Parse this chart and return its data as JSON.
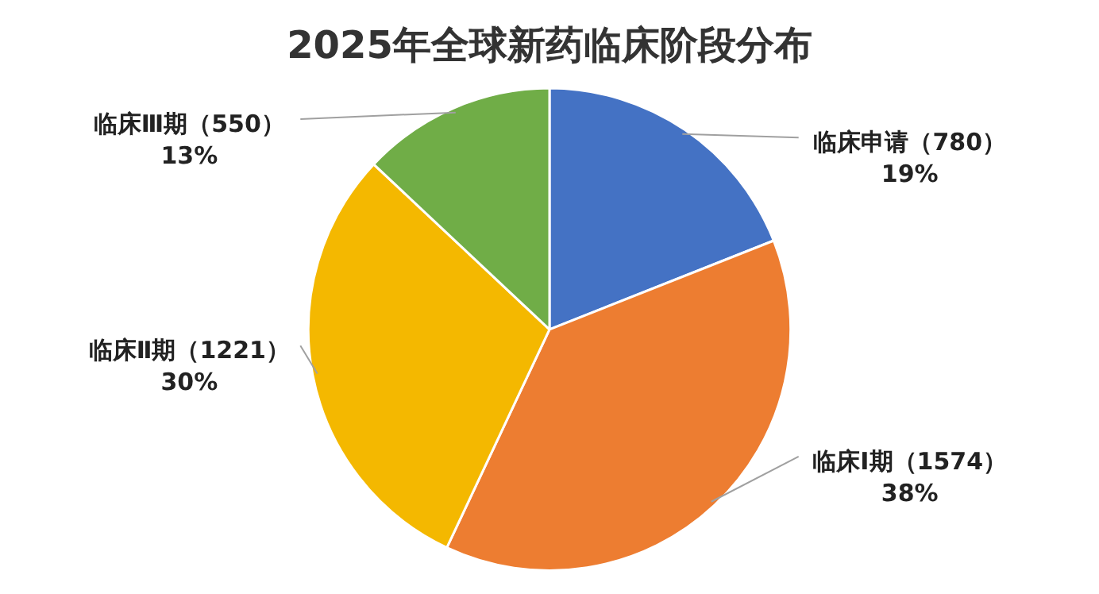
{
  "chart_data": {
    "type": "pie",
    "title": "2025年全球新药临床阶段分布",
    "categories": [
      "临床申请（780）",
      "临床Ⅰ期（1574）",
      "临床Ⅱ期（1221）",
      "临床Ⅲ期（550）"
    ],
    "values": [
      19,
      38,
      30,
      13
    ],
    "value_labels": [
      "19%",
      "38%",
      "30%",
      "13%"
    ],
    "colors": [
      "#4472c4",
      "#ed7d31",
      "#f4b800",
      "#70ad47"
    ],
    "legend": false
  }
}
